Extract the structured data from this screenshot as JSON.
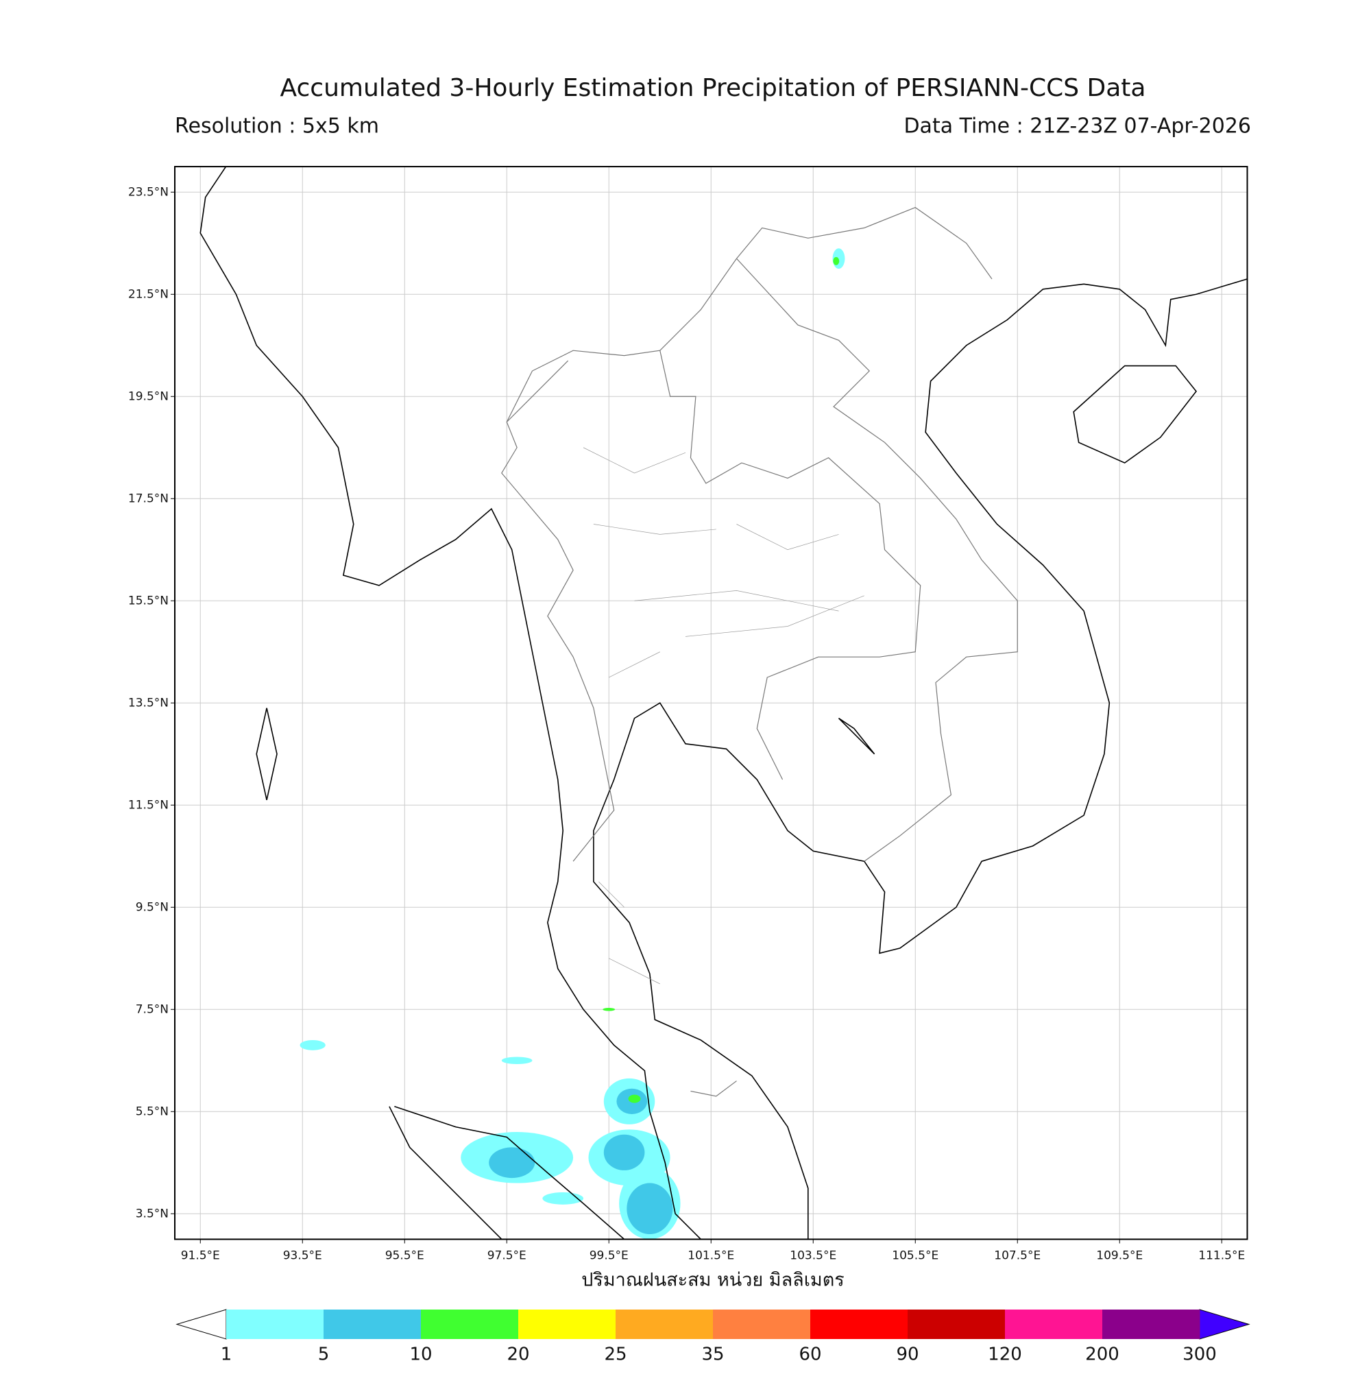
{
  "header": {
    "title": "Accumulated 3-Hourly Estimation Precipitation of PERSIANN-CCS Data",
    "resolution": "Resolution : 5x5 km",
    "data_time": "Data Time : 21Z-23Z 07-Apr-2026"
  },
  "map": {
    "lonlim": [
      91,
      112
    ],
    "latlim": [
      3,
      24
    ],
    "grid": true,
    "lon_ticks": [
      {
        "value": 91.5,
        "label": "91.5°E"
      },
      {
        "value": 93.5,
        "label": "93.5°E"
      },
      {
        "value": 95.5,
        "label": "95.5°E"
      },
      {
        "value": 97.5,
        "label": "97.5°E"
      },
      {
        "value": 99.5,
        "label": "99.5°E"
      },
      {
        "value": 101.5,
        "label": "101.5°E"
      },
      {
        "value": 103.5,
        "label": "103.5°E"
      },
      {
        "value": 105.5,
        "label": "105.5°E"
      },
      {
        "value": 107.5,
        "label": "107.5°E"
      },
      {
        "value": 109.5,
        "label": "109.5°E"
      },
      {
        "value": 111.5,
        "label": "111.5°E"
      }
    ],
    "lat_ticks": [
      {
        "value": 23.5,
        "label": "23.5°N"
      },
      {
        "value": 21.5,
        "label": "21.5°N"
      },
      {
        "value": 19.5,
        "label": "19.5°N"
      },
      {
        "value": 17.5,
        "label": "17.5°N"
      },
      {
        "value": 15.5,
        "label": "15.5°N"
      },
      {
        "value": 13.5,
        "label": "13.5°N"
      },
      {
        "value": 11.5,
        "label": "11.5°N"
      },
      {
        "value": 9.5,
        "label": "9.5°N"
      },
      {
        "value": 7.5,
        "label": "7.5°N"
      },
      {
        "value": 5.5,
        "label": "5.5°N"
      },
      {
        "value": 3.5,
        "label": "3.5°N"
      }
    ],
    "xlabel": "ปริมาณฝนสะสม หน่วย มิลลิเมตร"
  },
  "colorbar": {
    "levels": [
      1,
      5,
      10,
      20,
      25,
      35,
      60,
      90,
      120,
      200,
      300
    ],
    "colors": [
      "#80ffff",
      "#40c8e8",
      "#40ff30",
      "#ffff00",
      "#ffaa20",
      "#ff8040",
      "#ff0000",
      "#cc0000",
      "#ff1493",
      "#8b008b"
    ],
    "under_color": "#ffffff",
    "over_color": "#4000ff"
  }
}
